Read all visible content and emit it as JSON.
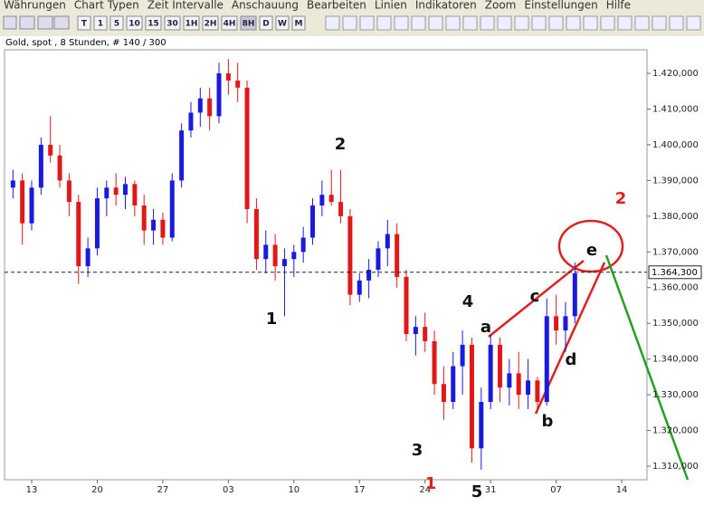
{
  "menu": [
    "Währungen",
    "Chart Typen",
    "Zeit Intervalle",
    "Anschauung",
    "Bearbeiten",
    "Linien",
    "Indikatoren",
    "Zoom",
    "Einstellungen",
    "Hilfe"
  ],
  "toolbar": [
    "T",
    "1",
    "5",
    "10",
    "15",
    "30",
    "1H",
    "2H",
    "4H",
    "8H",
    "D",
    "W",
    "M"
  ],
  "chart_data": {
    "type": "candlestick",
    "title": "Gold, spot , 8 Stunden, # 140 / 300",
    "up_color": "#1a1adf",
    "down_color": "#e01818",
    "x": [
      -2,
      -1,
      0,
      1,
      2,
      3,
      4,
      5,
      6,
      7,
      8,
      9,
      10,
      11,
      12,
      13,
      14,
      15,
      16,
      17,
      18,
      19,
      20,
      21,
      22,
      23,
      24,
      25,
      26,
      27,
      28,
      29,
      30,
      31,
      32,
      33,
      34,
      35,
      36,
      37,
      38,
      39,
      40,
      41,
      42,
      43,
      44,
      45,
      46,
      47,
      48,
      49,
      50,
      51,
      52,
      53,
      54,
      55,
      56,
      57,
      58
    ],
    "open": [
      1388,
      1390,
      1378,
      1388,
      1400,
      1397,
      1390,
      1384,
      1366,
      1371,
      1385,
      1388,
      1386,
      1389,
      1383,
      1376,
      1379,
      1374,
      1390,
      1404,
      1409,
      1413,
      1408,
      1420,
      1418,
      1416,
      1382,
      1368,
      1372,
      1366,
      1368,
      1370,
      1374,
      1383,
      1386,
      1384,
      1380,
      1358,
      1362,
      1365,
      1371,
      1375,
      1363,
      1347,
      1349,
      1345,
      1333,
      1328,
      1338,
      1344,
      1315,
      1328,
      1344,
      1332,
      1336,
      1330,
      1334,
      1328,
      1352,
      1348,
      1352
    ],
    "high": [
      1393,
      1392,
      1390,
      1402,
      1408,
      1400,
      1392,
      1386,
      1374,
      1388,
      1390,
      1392,
      1391,
      1390,
      1386,
      1382,
      1381,
      1392,
      1406,
      1412,
      1416,
      1416,
      1423,
      1424,
      1423,
      1418,
      1385,
      1376,
      1375,
      1371,
      1372,
      1377,
      1385,
      1390,
      1393,
      1393,
      1382,
      1364,
      1368,
      1373,
      1379,
      1378,
      1365,
      1352,
      1353,
      1348,
      1338,
      1342,
      1348,
      1346,
      1332,
      1347,
      1346,
      1340,
      1342,
      1340,
      1335,
      1357,
      1358,
      1356,
      1367
    ],
    "low": [
      1385,
      1372,
      1376,
      1386,
      1395,
      1388,
      1380,
      1361,
      1363,
      1369,
      1380,
      1383,
      1382,
      1380,
      1372,
      1372,
      1372,
      1373,
      1388,
      1402,
      1405,
      1404,
      1406,
      1414,
      1412,
      1378,
      1365,
      1364,
      1362,
      1352,
      1363,
      1367,
      1372,
      1380,
      1383,
      1378,
      1355,
      1356,
      1357,
      1363,
      1366,
      1360,
      1345,
      1341,
      1342,
      1330,
      1323,
      1326,
      1330,
      1311,
      1309,
      1326,
      1328,
      1327,
      1326,
      1326,
      1325,
      1327,
      1344,
      1342,
      1350
    ],
    "close": [
      1390,
      1378,
      1388,
      1400,
      1397,
      1390,
      1384,
      1366,
      1371,
      1385,
      1388,
      1386,
      1389,
      1383,
      1376,
      1379,
      1374,
      1390,
      1404,
      1409,
      1413,
      1408,
      1420,
      1418,
      1416,
      1382,
      1368,
      1372,
      1366,
      1368,
      1370,
      1374,
      1383,
      1386,
      1384,
      1380,
      1358,
      1362,
      1365,
      1371,
      1375,
      1363,
      1347,
      1349,
      1345,
      1333,
      1328,
      1338,
      1344,
      1315,
      1328,
      1344,
      1332,
      1336,
      1330,
      1334,
      1328,
      1352,
      1348,
      1352,
      1364
    ],
    "xlim": [
      -2.9,
      65.7
    ],
    "ylim": [
      1306.2,
      1426.6
    ],
    "xticks": [
      {
        "value": 0,
        "label": "13"
      },
      {
        "value": 7,
        "label": "20"
      },
      {
        "value": 14,
        "label": "27"
      },
      {
        "value": 21,
        "label": "03"
      },
      {
        "value": 28,
        "label": "10"
      },
      {
        "value": 35,
        "label": "17"
      },
      {
        "value": 42,
        "label": "24"
      },
      {
        "value": 49,
        "label": "31"
      },
      {
        "value": 56,
        "label": "07"
      },
      {
        "value": 63,
        "label": "14"
      }
    ],
    "yticks": [
      {
        "value": 1310,
        "label": "1.310,000"
      },
      {
        "value": 1320,
        "label": "1.320,000"
      },
      {
        "value": 1330,
        "label": "1.330,000"
      },
      {
        "value": 1340,
        "label": "1.340,000"
      },
      {
        "value": 1350,
        "label": "1.350,000"
      },
      {
        "value": 1360,
        "label": "1.360,000"
      },
      {
        "value": 1370,
        "label": "1.370,000"
      },
      {
        "value": 1380,
        "label": "1.380,000"
      },
      {
        "value": 1390,
        "label": "1.390,000"
      },
      {
        "value": 1400,
        "label": "1.400,000"
      },
      {
        "value": 1410,
        "label": "1.410,000"
      },
      {
        "value": 1420,
        "label": "1.420,000"
      }
    ],
    "current_price": {
      "value": 1364.3,
      "label": "1.364,300"
    },
    "annotations": [
      {
        "text": "2",
        "color": "#111111"
      },
      {
        "text": "1",
        "color": "#111111"
      },
      {
        "text": "4",
        "color": "#111111"
      },
      {
        "text": "3",
        "color": "#111111"
      },
      {
        "text": "5",
        "color": "#111111"
      },
      {
        "text": "2",
        "color": "#e02020"
      },
      {
        "text": "1",
        "color": "#e02020"
      },
      {
        "text": "a",
        "color": "#111111"
      },
      {
        "text": "b",
        "color": "#111111"
      },
      {
        "text": "c",
        "color": "#111111"
      },
      {
        "text": "d",
        "color": "#111111"
      },
      {
        "text": "e",
        "color": "#111111"
      }
    ]
  }
}
